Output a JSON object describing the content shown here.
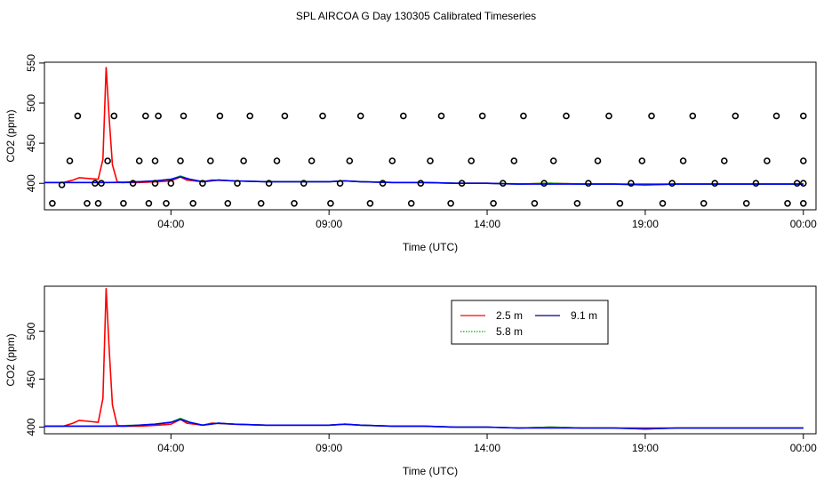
{
  "figure_title": "SPL AIRCOA G  Day 130305  Calibrated Timeseries",
  "chart_data": [
    {
      "type": "line",
      "panel": "top",
      "title": "",
      "xlabel": "Time (UTC)",
      "ylabel": "CO2 (ppm)",
      "x_unit": "hours",
      "xlim": [
        0,
        24.4
      ],
      "ylim": [
        367,
        551
      ],
      "xticks": [
        {
          "x": 4,
          "label": "04:00"
        },
        {
          "x": 9,
          "label": "09:00"
        },
        {
          "x": 14,
          "label": "14:00"
        },
        {
          "x": 19,
          "label": "19:00"
        },
        {
          "x": 24,
          "label": "00:00"
        }
      ],
      "yticks": [
        {
          "y": 400,
          "label": "400"
        },
        {
          "y": 450,
          "label": "450"
        },
        {
          "y": 500,
          "label": "500"
        },
        {
          "y": 550,
          "label": "550"
        }
      ],
      "grid": false,
      "series": [
        {
          "key": "red",
          "color": "#ff0000",
          "x": [
            0,
            0.6,
            0.9,
            1.1,
            1.4,
            1.7,
            1.85,
            1.95,
            2.05,
            2.15,
            2.3,
            2.45,
            3.0,
            3.6,
            4.0,
            4.3,
            4.5,
            5.0,
            5.3,
            6.0,
            7.0,
            8.0,
            9.0,
            9.5,
            10.0,
            11.0,
            12.0,
            13.0,
            14.0,
            15.0,
            16.0,
            17.0,
            18.0,
            19.0,
            20.0,
            21.0,
            22.0,
            23.0,
            24.0
          ],
          "y": [
            401,
            401,
            404,
            407,
            406,
            405,
            430,
            545,
            480,
            423,
            402,
            401,
            401,
            402,
            403,
            408,
            404,
            402,
            404,
            403,
            402,
            402,
            402,
            403,
            402,
            401,
            401,
            400,
            400,
            399,
            400,
            399,
            399,
            399,
            399,
            399,
            399,
            399,
            399
          ]
        },
        {
          "key": "green",
          "color": "#00aa00",
          "x": [
            0,
            1.0,
            2.0,
            3.0,
            3.5,
            4.0,
            4.3,
            4.6,
            5.0,
            5.5,
            6.0,
            7.0,
            8.0,
            9.0,
            9.5,
            10.0,
            11.0,
            12.0,
            13.0,
            14.0,
            15.0,
            16.0,
            17.0,
            18.0,
            19.0,
            20.0,
            21.0,
            22.0,
            23.0,
            24.0
          ],
          "y": [
            401,
            401,
            401,
            402,
            403,
            405,
            409,
            405,
            402,
            404,
            403,
            402,
            402,
            402,
            403,
            402,
            401,
            401,
            400,
            400,
            399,
            400,
            399,
            399,
            398,
            399,
            399,
            399,
            399,
            399
          ]
        },
        {
          "key": "blue",
          "color": "#0000ff",
          "x": [
            0,
            1.0,
            2.0,
            2.5,
            3.0,
            3.5,
            4.0,
            4.3,
            4.6,
            5.0,
            5.5,
            6.0,
            7.0,
            8.0,
            9.0,
            9.5,
            10.0,
            11.0,
            12.0,
            13.0,
            14.0,
            15.0,
            16.0,
            17.0,
            18.0,
            19.0,
            20.0,
            21.0,
            22.0,
            23.0,
            24.0
          ],
          "y": [
            401,
            401,
            401,
            401,
            402,
            403,
            405,
            408,
            405,
            402,
            404,
            403,
            402,
            402,
            402,
            403,
            402,
            401,
            401,
            400,
            400,
            399,
            399,
            399,
            399,
            398,
            399,
            399,
            399,
            399,
            399
          ]
        }
      ],
      "points": {
        "style": "open-circle",
        "x": [
          0.25,
          0.55,
          0.8,
          1.05,
          1.35,
          1.6,
          1.7,
          1.8,
          2.0,
          2.2,
          2.5,
          2.8,
          3.0,
          3.2,
          3.3,
          3.5,
          3.5,
          3.6,
          3.85,
          4.0,
          4.3,
          4.4,
          4.7,
          5.0,
          5.25,
          5.55,
          5.8,
          6.1,
          6.3,
          6.5,
          6.85,
          7.1,
          7.35,
          7.6,
          7.9,
          8.2,
          8.45,
          8.8,
          9.05,
          9.35,
          9.65,
          10.0,
          10.3,
          10.7,
          11.0,
          11.35,
          11.6,
          11.9,
          12.2,
          12.55,
          12.85,
          13.2,
          13.5,
          13.85,
          14.2,
          14.5,
          14.85,
          15.15,
          15.5,
          15.8,
          16.1,
          16.5,
          16.85,
          17.2,
          17.5,
          17.85,
          18.2,
          18.55,
          18.9,
          19.2,
          19.55,
          19.85,
          20.2,
          20.5,
          20.85,
          21.2,
          21.5,
          21.85,
          22.2,
          22.5,
          22.85,
          23.15,
          23.5,
          23.8,
          24.0,
          24.0,
          24.0,
          24.0
        ],
        "y": [
          375,
          398,
          428,
          484,
          375,
          400,
          375,
          400,
          428,
          484,
          375,
          400,
          428,
          484,
          375,
          400,
          428,
          484,
          375,
          400,
          428,
          484,
          375,
          400,
          428,
          484,
          375,
          400,
          428,
          484,
          375,
          400,
          428,
          484,
          375,
          400,
          428,
          484,
          375,
          400,
          428,
          484,
          375,
          400,
          428,
          484,
          375,
          400,
          428,
          484,
          375,
          400,
          428,
          484,
          375,
          400,
          428,
          484,
          375,
          400,
          428,
          484,
          375,
          400,
          428,
          484,
          375,
          400,
          428,
          484,
          375,
          400,
          428,
          484,
          375,
          400,
          428,
          484,
          375,
          400,
          428,
          484,
          375,
          400,
          428,
          484,
          375,
          400
        ]
      }
    },
    {
      "type": "line",
      "panel": "bottom",
      "title": "",
      "xlabel": "Time (UTC)",
      "ylabel": "CO2 (ppm)",
      "x_unit": "hours",
      "xlim": [
        0,
        24.4
      ],
      "ylim": [
        393,
        547
      ],
      "xticks": [
        {
          "x": 4,
          "label": "04:00"
        },
        {
          "x": 9,
          "label": "09:00"
        },
        {
          "x": 14,
          "label": "14:00"
        },
        {
          "x": 19,
          "label": "19:00"
        },
        {
          "x": 24,
          "label": "00:00"
        }
      ],
      "yticks": [
        {
          "y": 400,
          "label": "400"
        },
        {
          "y": 450,
          "label": "450"
        },
        {
          "y": 500,
          "label": "500"
        }
      ],
      "grid": false,
      "legend_position": "top-right",
      "legend": [
        {
          "name": "2.5 m",
          "color": "#ff0000"
        },
        {
          "name": "5.8 m",
          "color": "#00aa00"
        },
        {
          "name": "9.1 m",
          "color": "#000080"
        }
      ],
      "series": [
        {
          "key": "red",
          "color": "#ff0000",
          "x": [
            0,
            0.6,
            0.9,
            1.1,
            1.4,
            1.7,
            1.85,
            1.95,
            2.05,
            2.15,
            2.3,
            2.45,
            3.0,
            3.6,
            4.0,
            4.3,
            4.5,
            5.0,
            5.3,
            6.0,
            7.0,
            8.0,
            9.0,
            9.5,
            10.0,
            11.0,
            12.0,
            13.0,
            14.0,
            15.0,
            16.0,
            17.0,
            18.0,
            19.0,
            20.0,
            21.0,
            22.0,
            23.0,
            24.0
          ],
          "y": [
            401,
            401,
            404,
            407,
            406,
            405,
            430,
            545,
            480,
            423,
            402,
            401,
            401,
            402,
            403,
            408,
            404,
            402,
            404,
            403,
            402,
            402,
            402,
            403,
            402,
            401,
            401,
            400,
            400,
            399,
            400,
            399,
            399,
            399,
            399,
            399,
            399,
            399,
            399
          ]
        },
        {
          "key": "green",
          "color": "#00aa00",
          "x": [
            0,
            1.0,
            2.0,
            3.0,
            3.5,
            4.0,
            4.3,
            4.6,
            5.0,
            5.5,
            6.0,
            7.0,
            8.0,
            9.0,
            9.5,
            10.0,
            11.0,
            12.0,
            13.0,
            14.0,
            15.0,
            16.0,
            17.0,
            18.0,
            19.0,
            20.0,
            21.0,
            22.0,
            23.0,
            24.0
          ],
          "y": [
            401,
            401,
            401,
            402,
            403,
            405,
            409,
            405,
            402,
            404,
            403,
            402,
            402,
            402,
            403,
            402,
            401,
            401,
            400,
            400,
            399,
            400,
            399,
            399,
            398,
            399,
            399,
            399,
            399,
            399
          ]
        },
        {
          "key": "blue",
          "color": "#0000ff",
          "x": [
            0,
            1.0,
            2.0,
            2.5,
            3.0,
            3.5,
            4.0,
            4.3,
            4.6,
            5.0,
            5.5,
            6.0,
            7.0,
            8.0,
            9.0,
            9.5,
            10.0,
            11.0,
            12.0,
            13.0,
            14.0,
            15.0,
            16.0,
            17.0,
            18.0,
            19.0,
            20.0,
            21.0,
            22.0,
            23.0,
            24.0
          ],
          "y": [
            401,
            401,
            401,
            401,
            402,
            403,
            405,
            408,
            405,
            402,
            404,
            403,
            402,
            402,
            402,
            403,
            402,
            401,
            401,
            400,
            400,
            399,
            399,
            399,
            399,
            398,
            399,
            399,
            399,
            399,
            399
          ]
        }
      ]
    }
  ]
}
